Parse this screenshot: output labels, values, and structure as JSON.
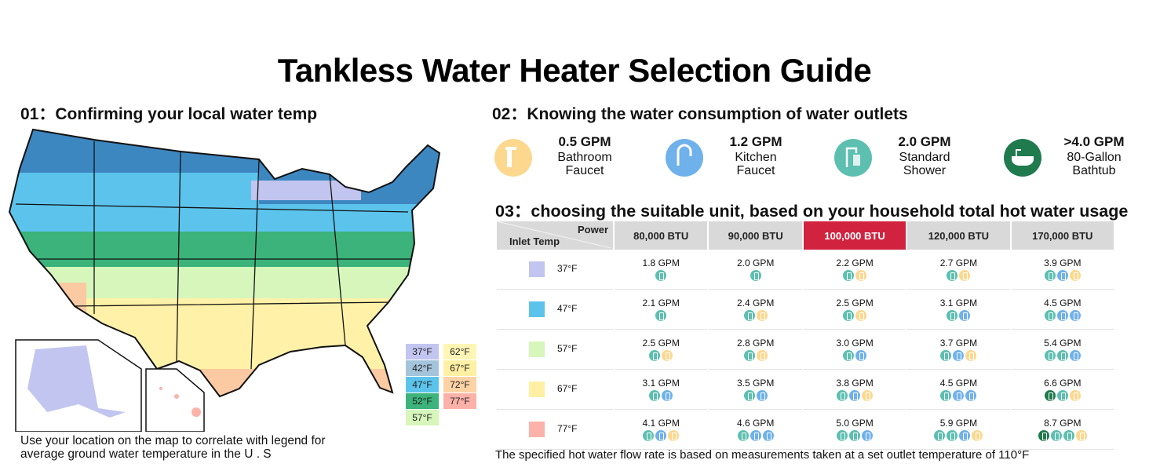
{
  "title": "Tankless Water Heater Selection Guide",
  "section1": "01：Confirming your local water temp",
  "section2": "02：Knowing the water consumption of water outlets",
  "section3": "03：choosing the suitable unit, based on your household total hot water usage",
  "map_note_1": "Use your location on the map to correlate with legend for",
  "map_note_2": "average ground water temperature in the U . S",
  "footer": "The specified hot water flow rate is based on measurements taken at a set outlet temperature of 110°F",
  "legend": [
    {
      "label": "37°F",
      "color": "#c2c5ef"
    },
    {
      "label": "42°F",
      "color": "#a4c4dc"
    },
    {
      "label": "47°F",
      "color": "#5cc4ec"
    },
    {
      "label": "52°F",
      "color": "#3bb37a"
    },
    {
      "label": "57°F",
      "color": "#d6f6bb"
    },
    {
      "label": "62°F",
      "color": "#fff6b6"
    },
    {
      "label": "67°F",
      "color": "#fff0a4"
    },
    {
      "label": "72°F",
      "color": "#fdd3a6"
    },
    {
      "label": "77°F",
      "color": "#fdb2a9"
    }
  ],
  "outlets": [
    {
      "gpm": "0.5 GPM",
      "line1": "Bathroom",
      "line2": "Faucet",
      "icon": "bathroom-faucet",
      "color": "#fcd88f"
    },
    {
      "gpm": "1.2 GPM",
      "line1": "Kitchen",
      "line2": "Faucet",
      "icon": "kitchen-faucet",
      "color": "#6fb1ea"
    },
    {
      "gpm": "2.0 GPM",
      "line1": "Standard",
      "line2": "Shower",
      "icon": "shower",
      "color": "#5dbfb0"
    },
    {
      "gpm": ">4.0 GPM",
      "line1": "80-Gallon",
      "line2": "Bathtub",
      "icon": "bathtub",
      "color": "#1f7a4d"
    }
  ],
  "icon_colors": {
    "s": "#5dbfb0",
    "k": "#6fb1ea",
    "b": "#fcd88f",
    "t": "#1f7a4d"
  },
  "table": {
    "corner_power": "Power",
    "corner_inlet": "Inlet Temp",
    "columns": [
      "80,000 BTU",
      "90,000 BTU",
      "100,000 BTU",
      "120,000 BTU",
      "170,000 BTU"
    ],
    "highlight_column": 2,
    "rows": [
      {
        "temp": "37°F",
        "color": "#c2c5ef",
        "cells": [
          {
            "gpm": "1.8 GPM",
            "icons": "s"
          },
          {
            "gpm": "2.0 GPM",
            "icons": "s"
          },
          {
            "gpm": "2.2 GPM",
            "icons": "sb"
          },
          {
            "gpm": "2.7 GPM",
            "icons": "sb"
          },
          {
            "gpm": "3.9 GPM",
            "icons": "skb"
          }
        ]
      },
      {
        "temp": "47°F",
        "color": "#5cc4ec",
        "cells": [
          {
            "gpm": "2.1 GPM",
            "icons": "s"
          },
          {
            "gpm": "2.4 GPM",
            "icons": "sb"
          },
          {
            "gpm": "2.5 GPM",
            "icons": "sb"
          },
          {
            "gpm": "3.1 GPM",
            "icons": "sk"
          },
          {
            "gpm": "4.5 GPM",
            "icons": "skk"
          }
        ]
      },
      {
        "temp": "57°F",
        "color": "#d6f6bb",
        "cells": [
          {
            "gpm": "2.5 GPM",
            "icons": "sb"
          },
          {
            "gpm": "2.8 GPM",
            "icons": "sb"
          },
          {
            "gpm": "3.0 GPM",
            "icons": "sk"
          },
          {
            "gpm": "3.7 GPM",
            "icons": "skb"
          },
          {
            "gpm": "5.4 GPM",
            "icons": "ssk"
          }
        ]
      },
      {
        "temp": "67°F",
        "color": "#fff0a4",
        "cells": [
          {
            "gpm": "3.1 GPM",
            "icons": "sk"
          },
          {
            "gpm": "3.5 GPM",
            "icons": "sk"
          },
          {
            "gpm": "3.8 GPM",
            "icons": "skb"
          },
          {
            "gpm": "4.5 GPM",
            "icons": "skk"
          },
          {
            "gpm": "6.6 GPM",
            "icons": "tsb"
          }
        ]
      },
      {
        "temp": "77°F",
        "color": "#fdb2a9",
        "cells": [
          {
            "gpm": "4.1 GPM",
            "icons": "skb"
          },
          {
            "gpm": "4.6 GPM",
            "icons": "skk"
          },
          {
            "gpm": "5.0 GPM",
            "icons": "ssk"
          },
          {
            "gpm": "5.9 GPM",
            "icons": "sskb"
          },
          {
            "gpm": "8.7 GPM",
            "icons": "tssb"
          }
        ]
      }
    ]
  }
}
